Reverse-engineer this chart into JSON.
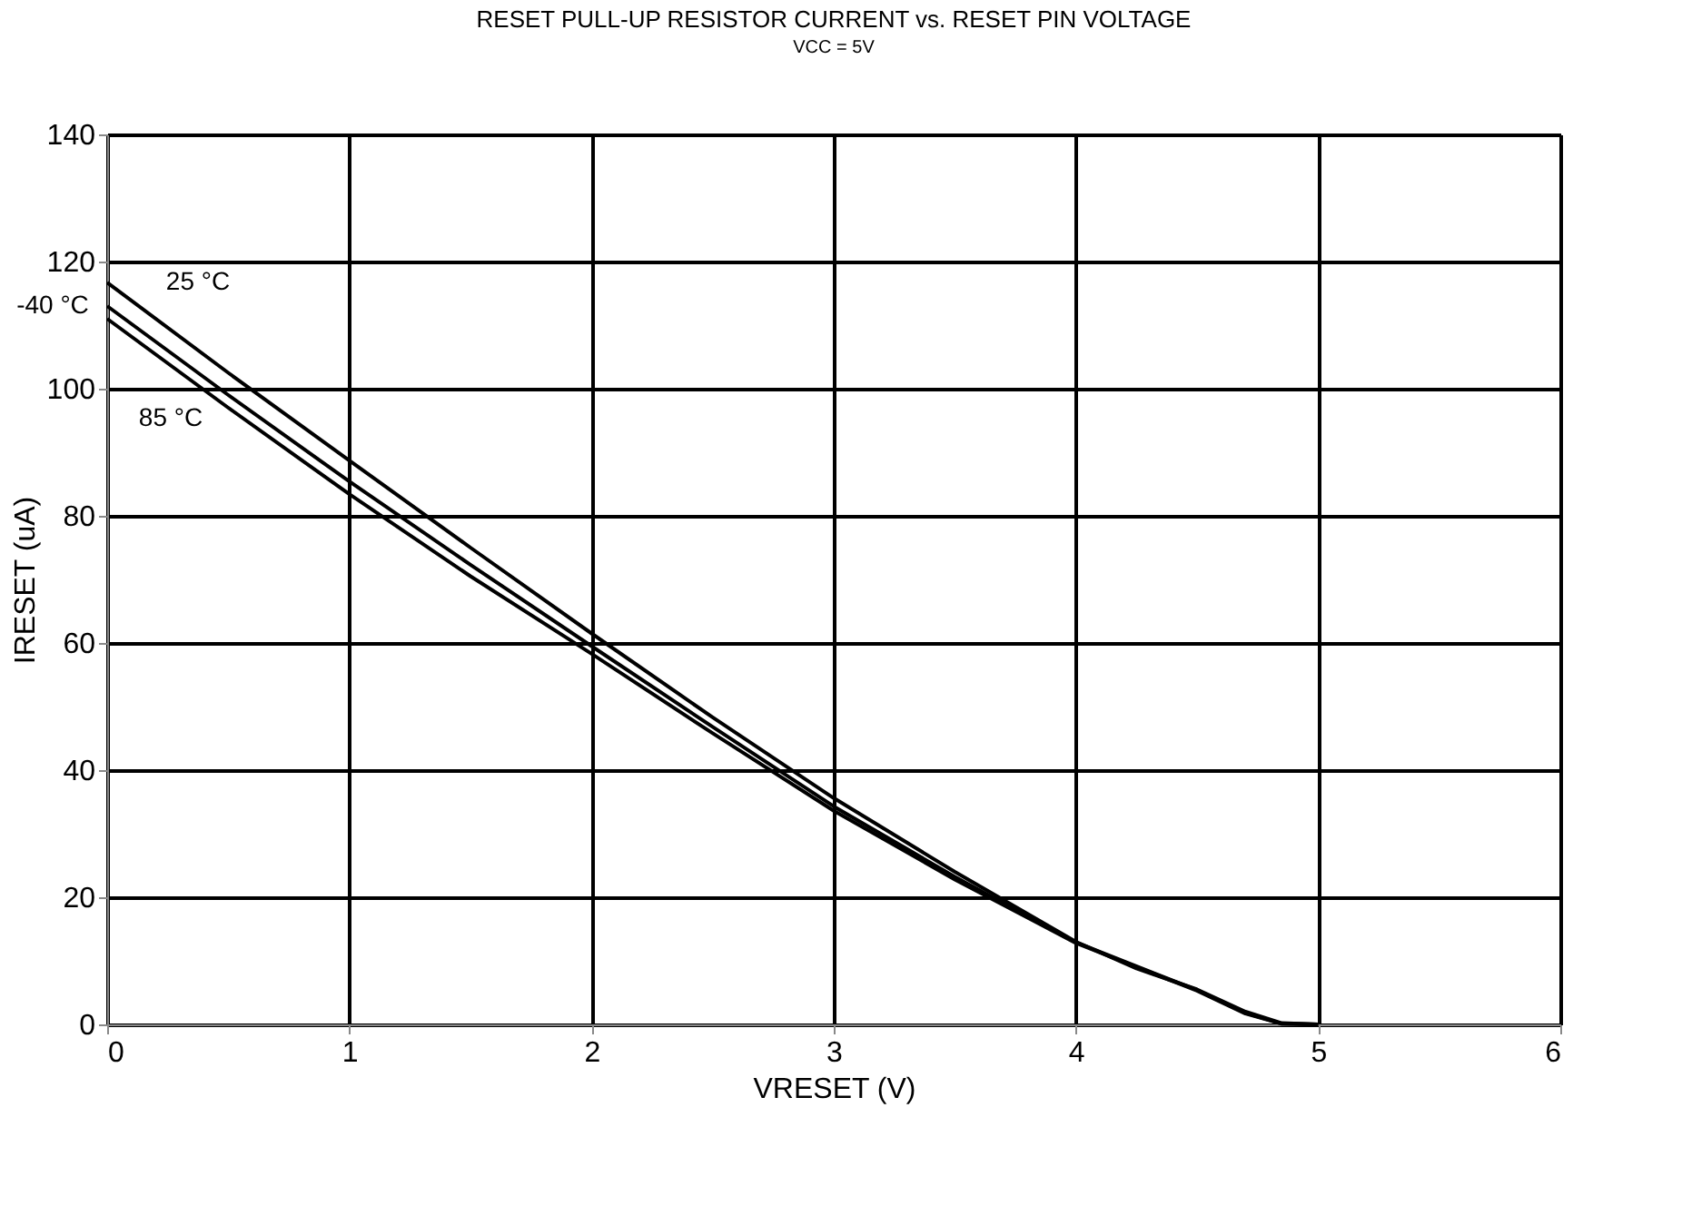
{
  "chart_data": {
    "type": "line",
    "title": "RESET PULL-UP RESISTOR CURRENT vs. RESET PIN VOLTAGE",
    "subtitle": "VCC = 5V",
    "xlabel": "VRESET (V)",
    "ylabel": "IRESET (uA)",
    "xlim": [
      0,
      6
    ],
    "xticks": [
      0,
      1,
      2,
      3,
      4,
      5,
      6
    ],
    "ylim": [
      0,
      140
    ],
    "yticks": [
      0,
      20,
      40,
      60,
      80,
      100,
      120,
      140
    ],
    "grid": true,
    "marker": "none",
    "line_style": "solid",
    "series": [
      {
        "name": "25 °C",
        "color": "#000000",
        "x": [
          0,
          0.5,
          1,
          1.5,
          2,
          2.5,
          3,
          3.5,
          4,
          4.25,
          4.5,
          4.7,
          4.85,
          5
        ],
        "values": [
          116.7,
          102.5,
          88.7,
          75,
          61.5,
          48.3,
          35.6,
          24,
          13,
          8.8,
          5.5,
          2,
          0.2,
          0
        ]
      },
      {
        "name": "-40 °C",
        "color": "#000000",
        "x": [
          0,
          0.5,
          1,
          1.5,
          2,
          2.5,
          3,
          3.5,
          4,
          4.5,
          4.7,
          4.85,
          5
        ],
        "values": [
          113,
          99,
          85.4,
          72.3,
          59.5,
          46.8,
          34.3,
          23.2,
          12.9,
          5.4,
          1.8,
          0.1,
          0
        ]
      },
      {
        "name": "85 °C",
        "color": "#000000",
        "x": [
          0,
          0.5,
          1,
          1.5,
          2,
          2.5,
          3,
          3.5,
          4,
          4.5,
          4.7,
          4.85,
          5
        ],
        "values": [
          111,
          97,
          83.4,
          70.5,
          58.3,
          45.8,
          33.6,
          22.8,
          12.8,
          5.3,
          1.7,
          0.1,
          0
        ]
      }
    ]
  }
}
